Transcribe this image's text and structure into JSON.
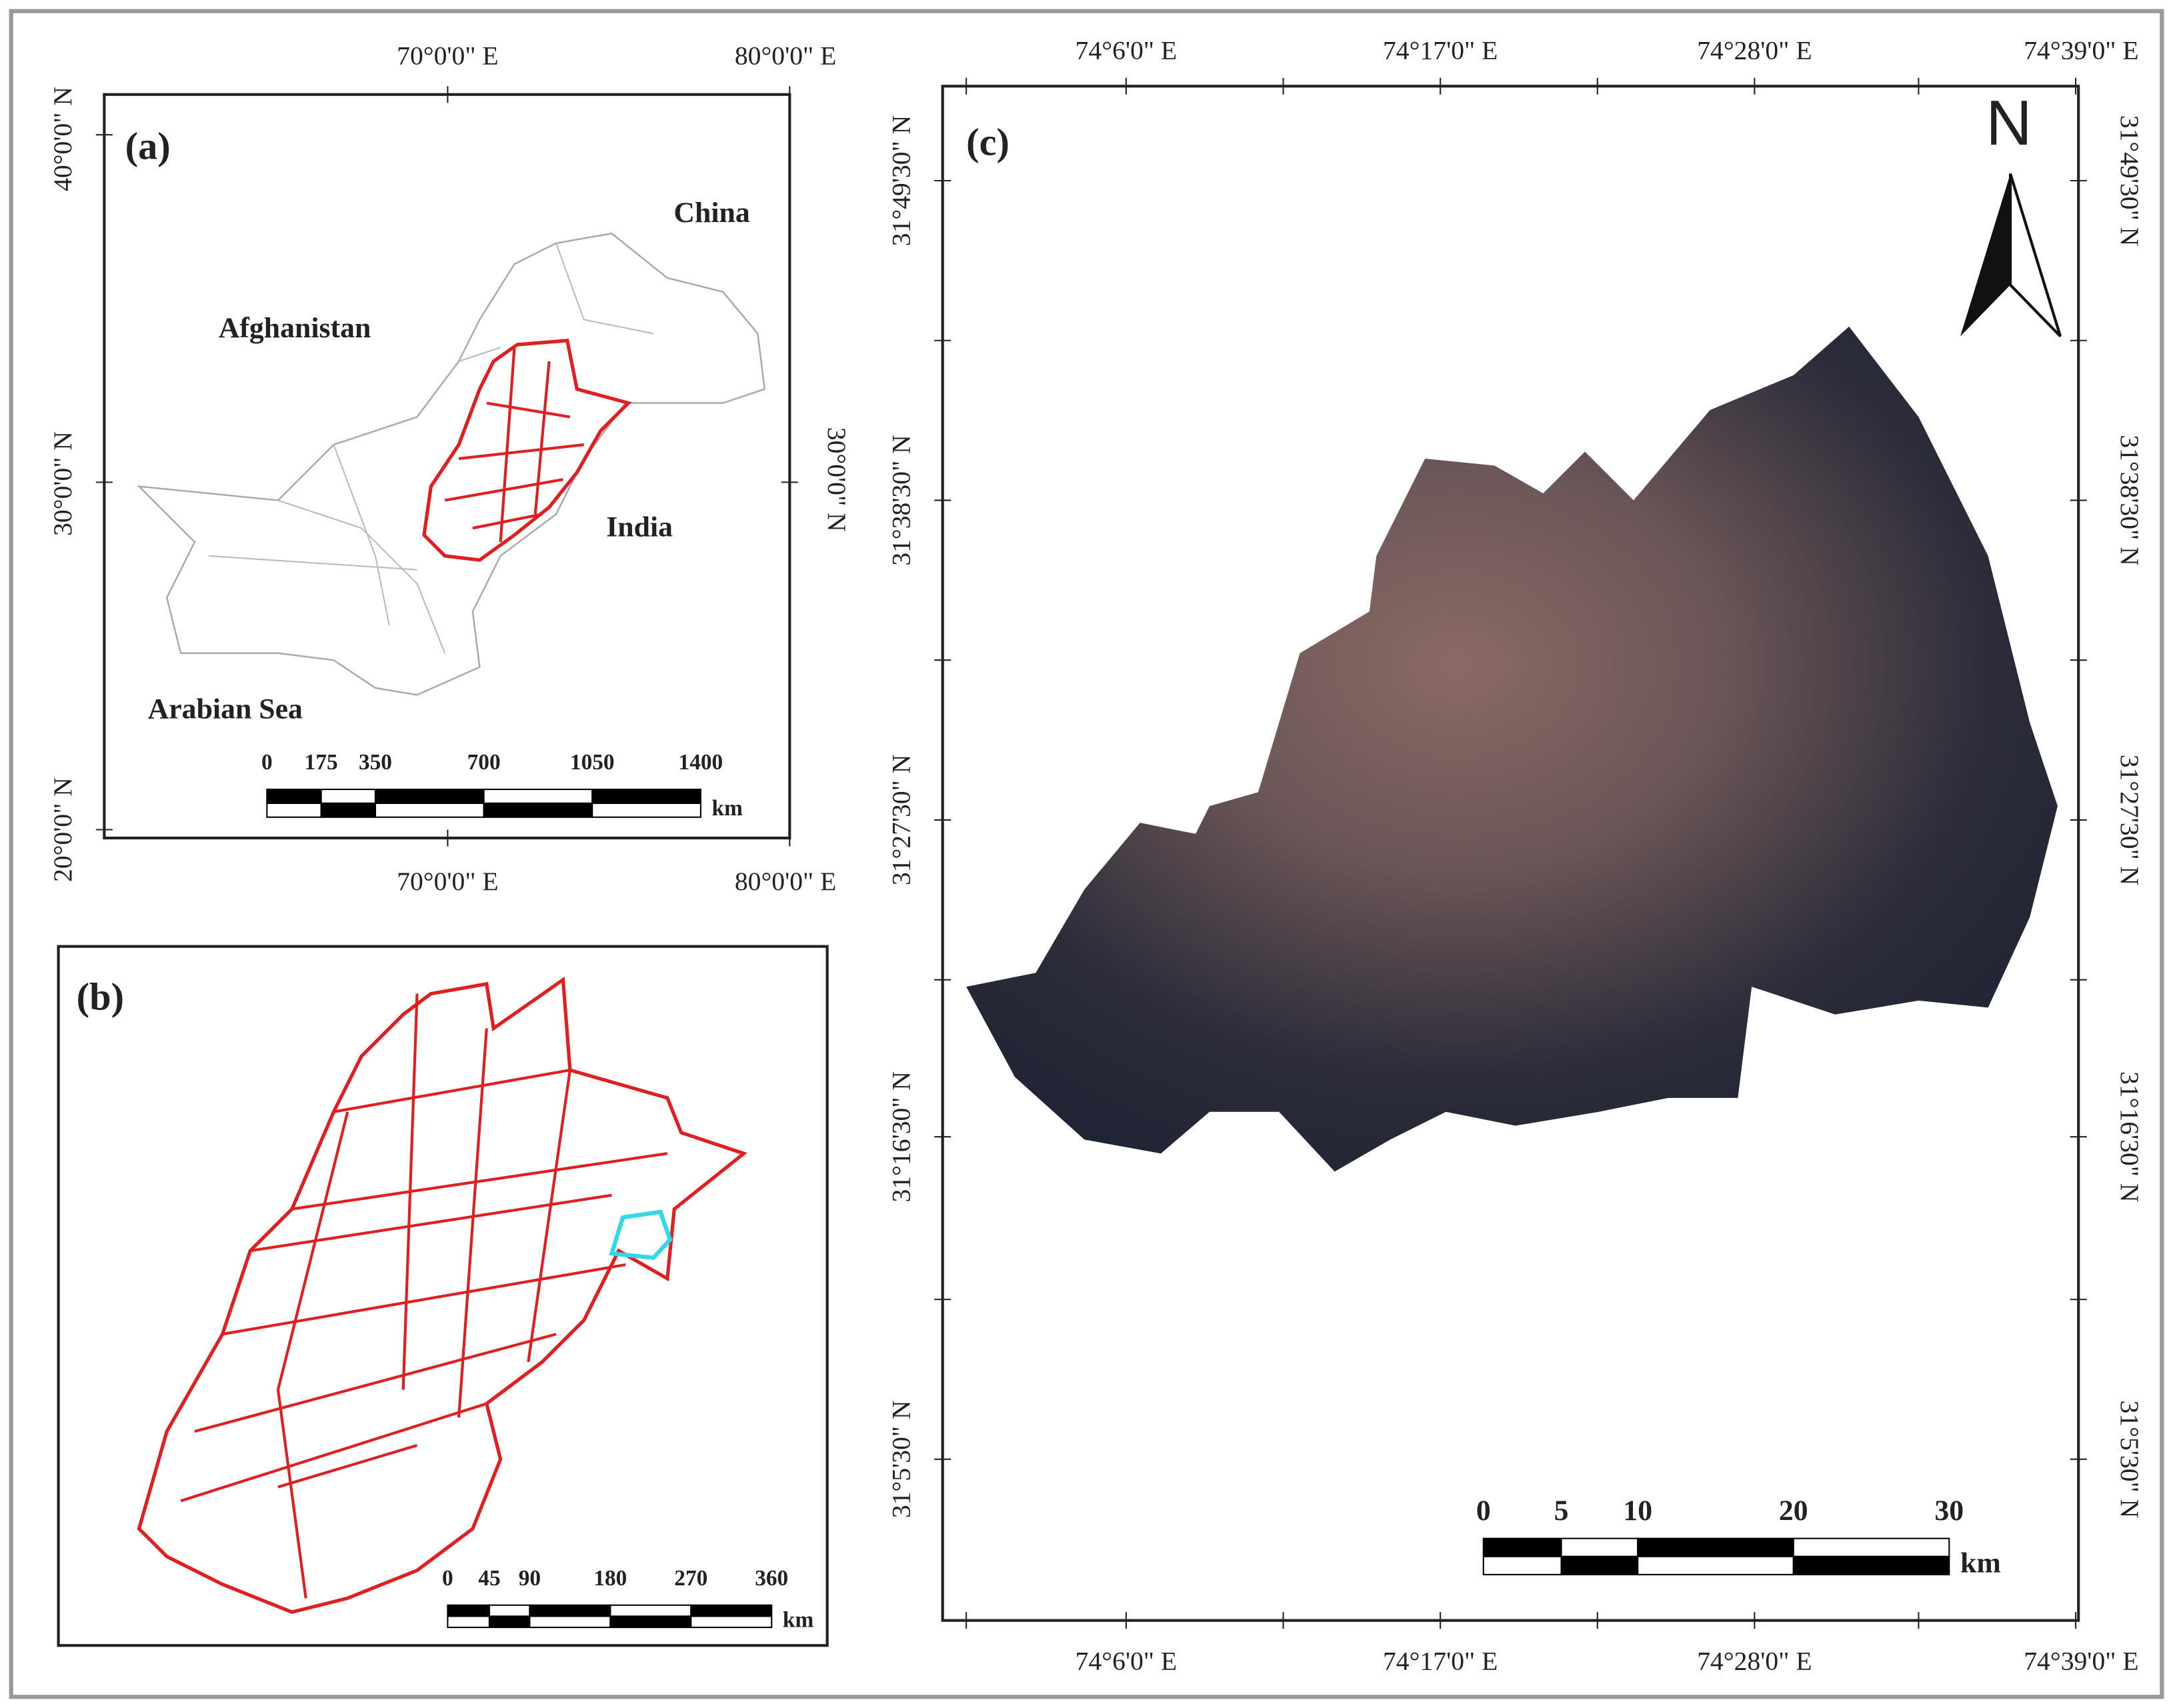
{
  "panels": [
    {
      "label": "(a)",
      "top_ticks": [
        "70°0'0\" E",
        "80°0'0\" E"
      ],
      "bottom_ticks": [
        "70°0'0\" E",
        "80°0'0\" E"
      ],
      "left_ticks": [
        "40°0'0\" N",
        "30°0'0\" N",
        "20°0'0\" N"
      ],
      "right_ticks": [
        "30°0'0\" N"
      ],
      "places": [
        "China",
        "Afghanistan",
        "India",
        "Arabian Sea"
      ],
      "scale": {
        "labels": [
          "0",
          "175",
          "350",
          "700",
          "1050",
          "1400"
        ],
        "unit": "km"
      }
    },
    {
      "label": "(b)",
      "scale": {
        "labels": [
          "0",
          "45",
          "90",
          "180",
          "270",
          "360"
        ],
        "unit": "km"
      }
    },
    {
      "label": "(c)",
      "top_ticks": [
        "74°6'0\" E",
        "74°17'0\" E",
        "74°28'0\" E",
        "74°39'0\" E"
      ],
      "bottom_ticks": [
        "74°6'0\" E",
        "74°17'0\" E",
        "74°28'0\" E",
        "74°39'0\" E"
      ],
      "left_ticks": [
        "31°49'30\" N",
        "31°38'30\" N",
        "31°27'30\" N",
        "31°16'30\" N",
        "31°5'30\" N"
      ],
      "right_ticks": [
        "31°49'30\" N",
        "31°38'30\" N",
        "31°27'30\" N",
        "31°16'30\" N",
        "31°5'30\" N"
      ],
      "north": "N",
      "scale": {
        "labels": [
          "0",
          "5",
          "10",
          "20",
          "30"
        ],
        "unit": "km"
      }
    }
  ]
}
